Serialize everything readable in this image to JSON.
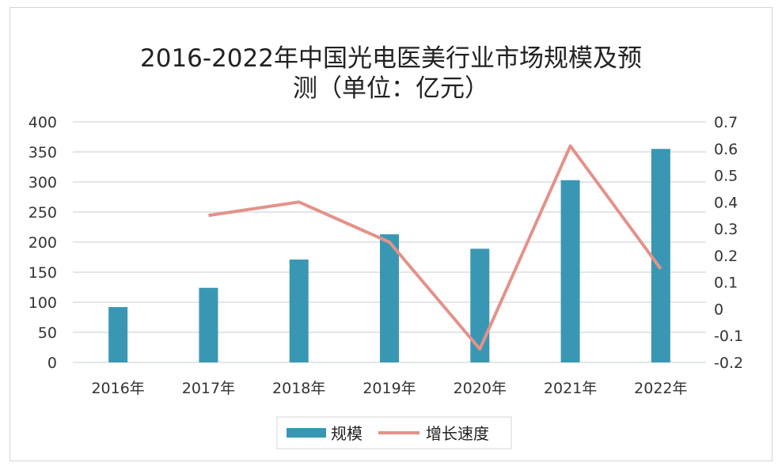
{
  "chart_data": {
    "type": "bar+line",
    "title_line1": "2016-2022年中国光电医美行业市场规模及预",
    "title_line2": "测（单位：亿元）",
    "categories": [
      "2016年",
      "2017年",
      "2018年",
      "2019年",
      "2020年",
      "2021年",
      "2022年"
    ],
    "series": [
      {
        "name": "规模",
        "type": "bar",
        "axis": "left",
        "color": "#3a97b4",
        "values": [
          92,
          124,
          171,
          213,
          189,
          303,
          355
        ]
      },
      {
        "name": "增长速度",
        "type": "line",
        "axis": "right",
        "color": "#e3928a",
        "values": [
          null,
          0.35,
          0.4,
          0.25,
          -0.15,
          0.61,
          0.15
        ]
      }
    ],
    "left_axis": {
      "ylim": [
        0,
        400
      ],
      "ticks": [
        "0",
        "50",
        "100",
        "150",
        "200",
        "250",
        "300",
        "350",
        "400"
      ]
    },
    "right_axis": {
      "ylim": [
        -0.2,
        0.7
      ],
      "ticks": [
        "-0.2",
        "-0.1",
        "0",
        "0.1",
        "0.2",
        "0.3",
        "0.4",
        "0.5",
        "0.6",
        "0.7"
      ]
    },
    "grid": true,
    "legend_position": "bottom"
  }
}
